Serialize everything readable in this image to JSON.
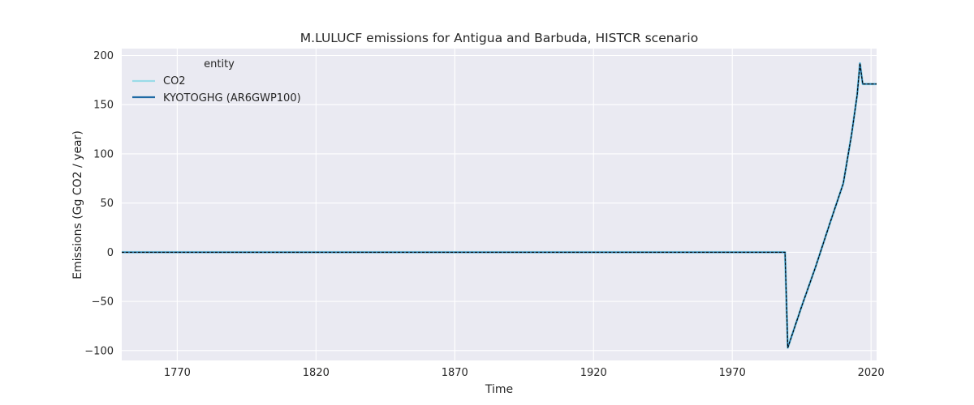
{
  "chart_data": {
    "type": "line",
    "title": "M.LULUCF emissions for Antigua and Barbuda, HISTCR scenario",
    "xlabel": "Time",
    "ylabel": "Emissions (Gg CO2 / year)",
    "xlim": [
      1750,
      2022
    ],
    "ylim": [
      -110,
      207
    ],
    "xticks": [
      1770,
      1820,
      1870,
      1920,
      1970,
      2020
    ],
    "yticks": [
      -100,
      -50,
      0,
      50,
      100,
      150,
      200
    ],
    "x_tick_labels": [
      "1770",
      "1820",
      "1870",
      "1920",
      "1970",
      "2020"
    ],
    "y_tick_labels": [
      "−100",
      "−50",
      "0",
      "50",
      "100",
      "150",
      "200"
    ],
    "grid": true,
    "legend": {
      "title": "entity",
      "placement": "top-left"
    },
    "series": [
      {
        "name": "CO2",
        "color": "#9adbe8",
        "style": "solid",
        "x": [
          1750,
          1989,
          1990,
          1995,
          2000,
          2005,
          2010,
          2013,
          2014,
          2015,
          2016,
          2017,
          2022
        ],
        "y": [
          0,
          0,
          -97,
          -55,
          -15,
          28,
          70,
          120,
          140,
          160,
          192,
          171,
          171
        ]
      },
      {
        "name": "KYOTOGHG (AR6GWP100)",
        "color": "#1f6aa5",
        "style": "solid",
        "x": [
          1750,
          1989,
          1990,
          1995,
          2000,
          2005,
          2010,
          2013,
          2014,
          2015,
          2016,
          2017,
          2022
        ],
        "y": [
          0,
          0,
          -97,
          -55,
          -15,
          28,
          70,
          120,
          140,
          160,
          192,
          171,
          171
        ]
      }
    ],
    "overlay_line": {
      "color": "#000000",
      "style": "dashed"
    }
  }
}
